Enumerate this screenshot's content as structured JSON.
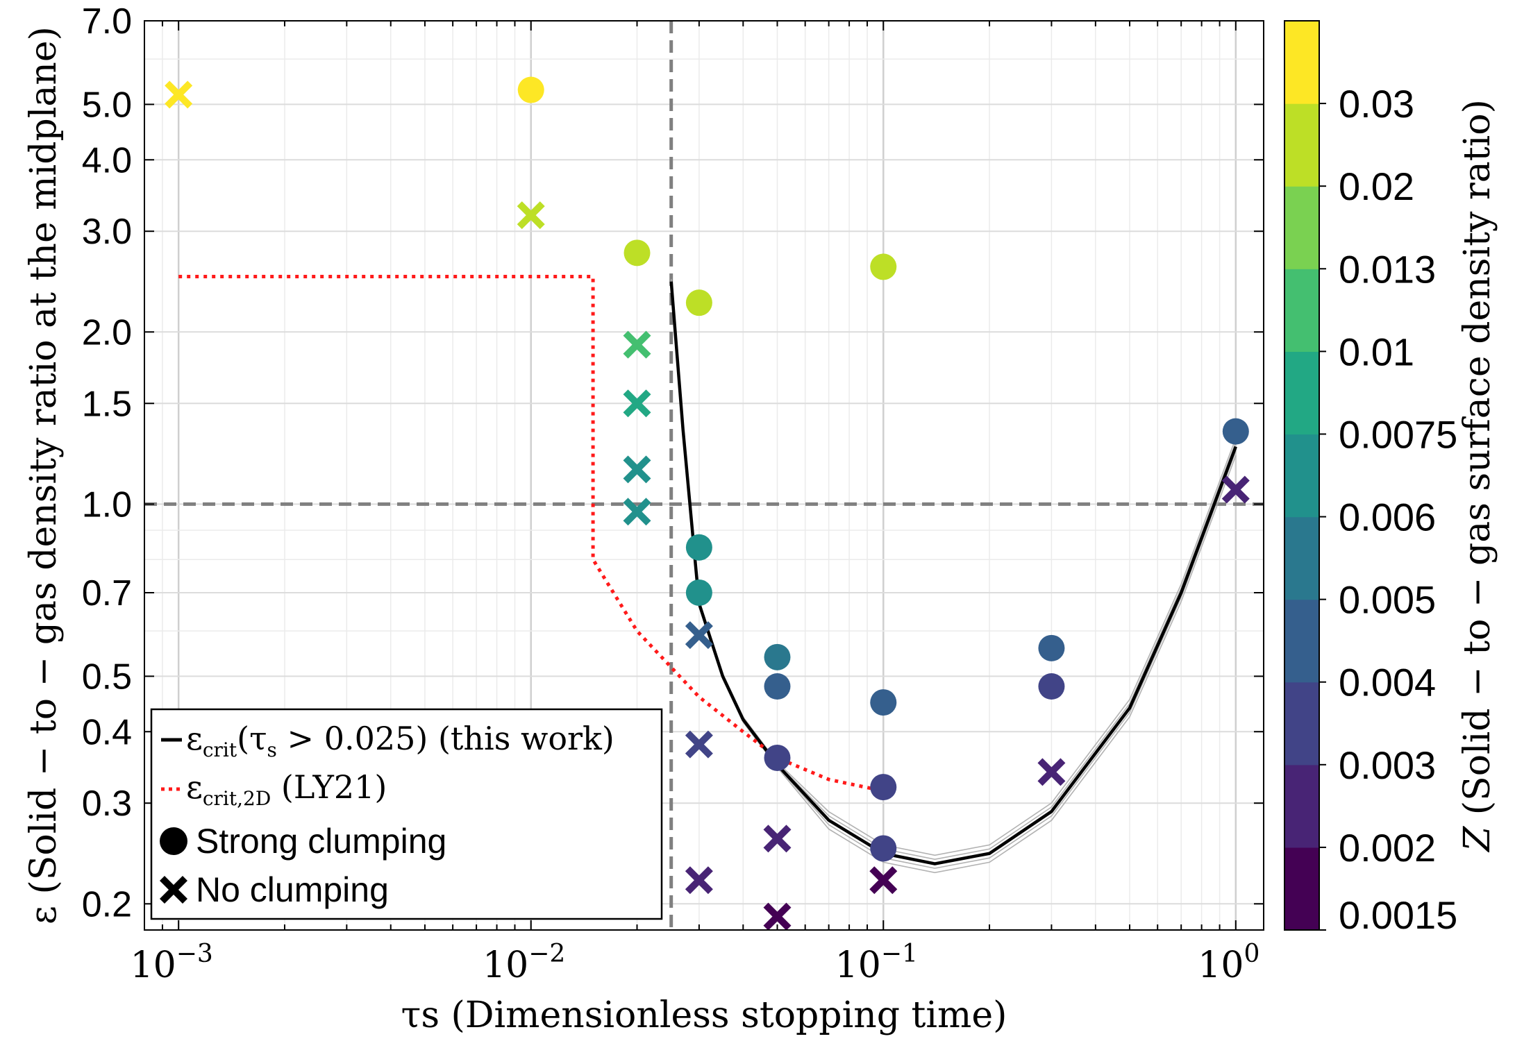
{
  "chart_data": {
    "type": "scatter",
    "xscale": "log",
    "yscale": "log",
    "xlim": [
      0.0008,
      1.2
    ],
    "ylim": [
      0.18,
      7.0
    ],
    "xlabel": "τs (Dimensionless stopping time)",
    "ylabel": "ε (Solid − to − gas density ratio at the midplane)",
    "x_ticks": [
      {
        "value": 0.001,
        "base": "10",
        "exp": "−3"
      },
      {
        "value": 0.01,
        "base": "10",
        "exp": "−2"
      },
      {
        "value": 0.1,
        "base": "10",
        "exp": "−1"
      },
      {
        "value": 1.0,
        "base": "10",
        "exp": "0"
      }
    ],
    "y_ticks": [
      {
        "value": 0.2,
        "label": "0.2"
      },
      {
        "value": 0.3,
        "label": "0.3"
      },
      {
        "value": 0.4,
        "label": "0.4"
      },
      {
        "value": 0.5,
        "label": "0.5"
      },
      {
        "value": 0.7,
        "label": "0.7"
      },
      {
        "value": 1.0,
        "label": "1.0"
      },
      {
        "value": 1.5,
        "label": "1.5"
      },
      {
        "value": 2.0,
        "label": "2.0"
      },
      {
        "value": 3.0,
        "label": "3.0"
      },
      {
        "value": 4.0,
        "label": "4.0"
      },
      {
        "value": 5.0,
        "label": "5.0"
      },
      {
        "value": 7.0,
        "label": "7.0"
      }
    ],
    "reference_lines": {
      "vertical_x": 0.025,
      "horizontal_y": 1.0,
      "color": "#808080"
    },
    "series": [
      {
        "name": "Strong clumping",
        "marker": "circle",
        "points": [
          {
            "x": 0.01,
            "y": 5.3,
            "z": 0.03
          },
          {
            "x": 0.02,
            "y": 2.75,
            "z": 0.02
          },
          {
            "x": 0.03,
            "y": 2.25,
            "z": 0.02
          },
          {
            "x": 0.1,
            "y": 2.6,
            "z": 0.02
          },
          {
            "x": 0.03,
            "y": 0.84,
            "z": 0.006
          },
          {
            "x": 0.03,
            "y": 0.7,
            "z": 0.006
          },
          {
            "x": 0.05,
            "y": 0.54,
            "z": 0.005
          },
          {
            "x": 0.05,
            "y": 0.48,
            "z": 0.004
          },
          {
            "x": 0.05,
            "y": 0.36,
            "z": 0.003
          },
          {
            "x": 0.1,
            "y": 0.45,
            "z": 0.004
          },
          {
            "x": 0.1,
            "y": 0.32,
            "z": 0.003
          },
          {
            "x": 0.1,
            "y": 0.25,
            "z": 0.003
          },
          {
            "x": 0.3,
            "y": 0.56,
            "z": 0.004
          },
          {
            "x": 0.3,
            "y": 0.48,
            "z": 0.003
          },
          {
            "x": 1.0,
            "y": 1.34,
            "z": 0.004
          }
        ]
      },
      {
        "name": "No clumping",
        "marker": "x",
        "points": [
          {
            "x": 0.001,
            "y": 5.2,
            "z": 0.03
          },
          {
            "x": 0.01,
            "y": 3.2,
            "z": 0.02
          },
          {
            "x": 0.02,
            "y": 1.9,
            "z": 0.01
          },
          {
            "x": 0.02,
            "y": 1.5,
            "z": 0.0075
          },
          {
            "x": 0.02,
            "y": 1.15,
            "z": 0.006
          },
          {
            "x": 0.02,
            "y": 0.97,
            "z": 0.006
          },
          {
            "x": 0.03,
            "y": 0.59,
            "z": 0.004
          },
          {
            "x": 0.03,
            "y": 0.38,
            "z": 0.003
          },
          {
            "x": 0.03,
            "y": 0.22,
            "z": 0.002
          },
          {
            "x": 0.05,
            "y": 0.26,
            "z": 0.002
          },
          {
            "x": 0.05,
            "y": 0.19,
            "z": 0.0015
          },
          {
            "x": 0.1,
            "y": 0.22,
            "z": 0.0015
          },
          {
            "x": 0.3,
            "y": 0.34,
            "z": 0.002
          },
          {
            "x": 1.0,
            "y": 1.06,
            "z": 0.002
          }
        ]
      }
    ],
    "curves": [
      {
        "name": "ε_crit(τs > 0.025) (this work)",
        "legend_main": "ε",
        "legend_sub": "crit",
        "legend_rest": "(τ",
        "legend_sub2": "s",
        "legend_tail": " > 0.025) (this work)",
        "style": "solid",
        "color": "#000000",
        "points": [
          [
            0.025,
            2.45
          ],
          [
            0.027,
            1.35
          ],
          [
            0.03,
            0.67
          ],
          [
            0.035,
            0.5
          ],
          [
            0.04,
            0.42
          ],
          [
            0.05,
            0.35
          ],
          [
            0.07,
            0.28
          ],
          [
            0.1,
            0.245
          ],
          [
            0.14,
            0.235
          ],
          [
            0.2,
            0.245
          ],
          [
            0.3,
            0.29
          ],
          [
            0.5,
            0.44
          ],
          [
            0.7,
            0.7
          ],
          [
            1.0,
            1.26
          ]
        ]
      },
      {
        "name": "ε_crit,2D (LY21)",
        "legend_main": "ε",
        "legend_sub": "crit,2D",
        "legend_tail": " (LY21)",
        "style": "dotted",
        "color": "#ff1a1a",
        "points": [
          [
            0.001,
            2.5
          ],
          [
            0.015,
            2.5
          ],
          [
            0.015,
            0.8
          ],
          [
            0.02,
            0.6
          ],
          [
            0.03,
            0.46
          ],
          [
            0.04,
            0.4
          ],
          [
            0.05,
            0.36
          ],
          [
            0.07,
            0.33
          ],
          [
            0.1,
            0.315
          ]
        ]
      }
    ],
    "legend": {
      "position": "bottom-left",
      "strong_clumping_label": "Strong clumping",
      "no_clumping_label": "No clumping"
    },
    "colorbar": {
      "label": "Z (Solid − to − gas surface density ratio)",
      "label_italic_part": "Z",
      "label_rest": " (Solid − to − gas surface density ratio)",
      "bounds": [
        0.0015,
        0.002,
        0.003,
        0.004,
        0.005,
        0.006,
        0.0075,
        0.01,
        0.013,
        0.02,
        0.03
      ],
      "tick_labels": [
        "0.0015",
        "0.002",
        "0.003",
        "0.004",
        "0.005",
        "0.006",
        "0.0075",
        "0.01",
        "0.013",
        "0.02",
        "0.03"
      ],
      "colors": [
        "#440154",
        "#482475",
        "#414487",
        "#355f8d",
        "#2a788e",
        "#21918c",
        "#22a884",
        "#44bf70",
        "#7ad151",
        "#bddf26",
        "#fde725"
      ]
    }
  }
}
